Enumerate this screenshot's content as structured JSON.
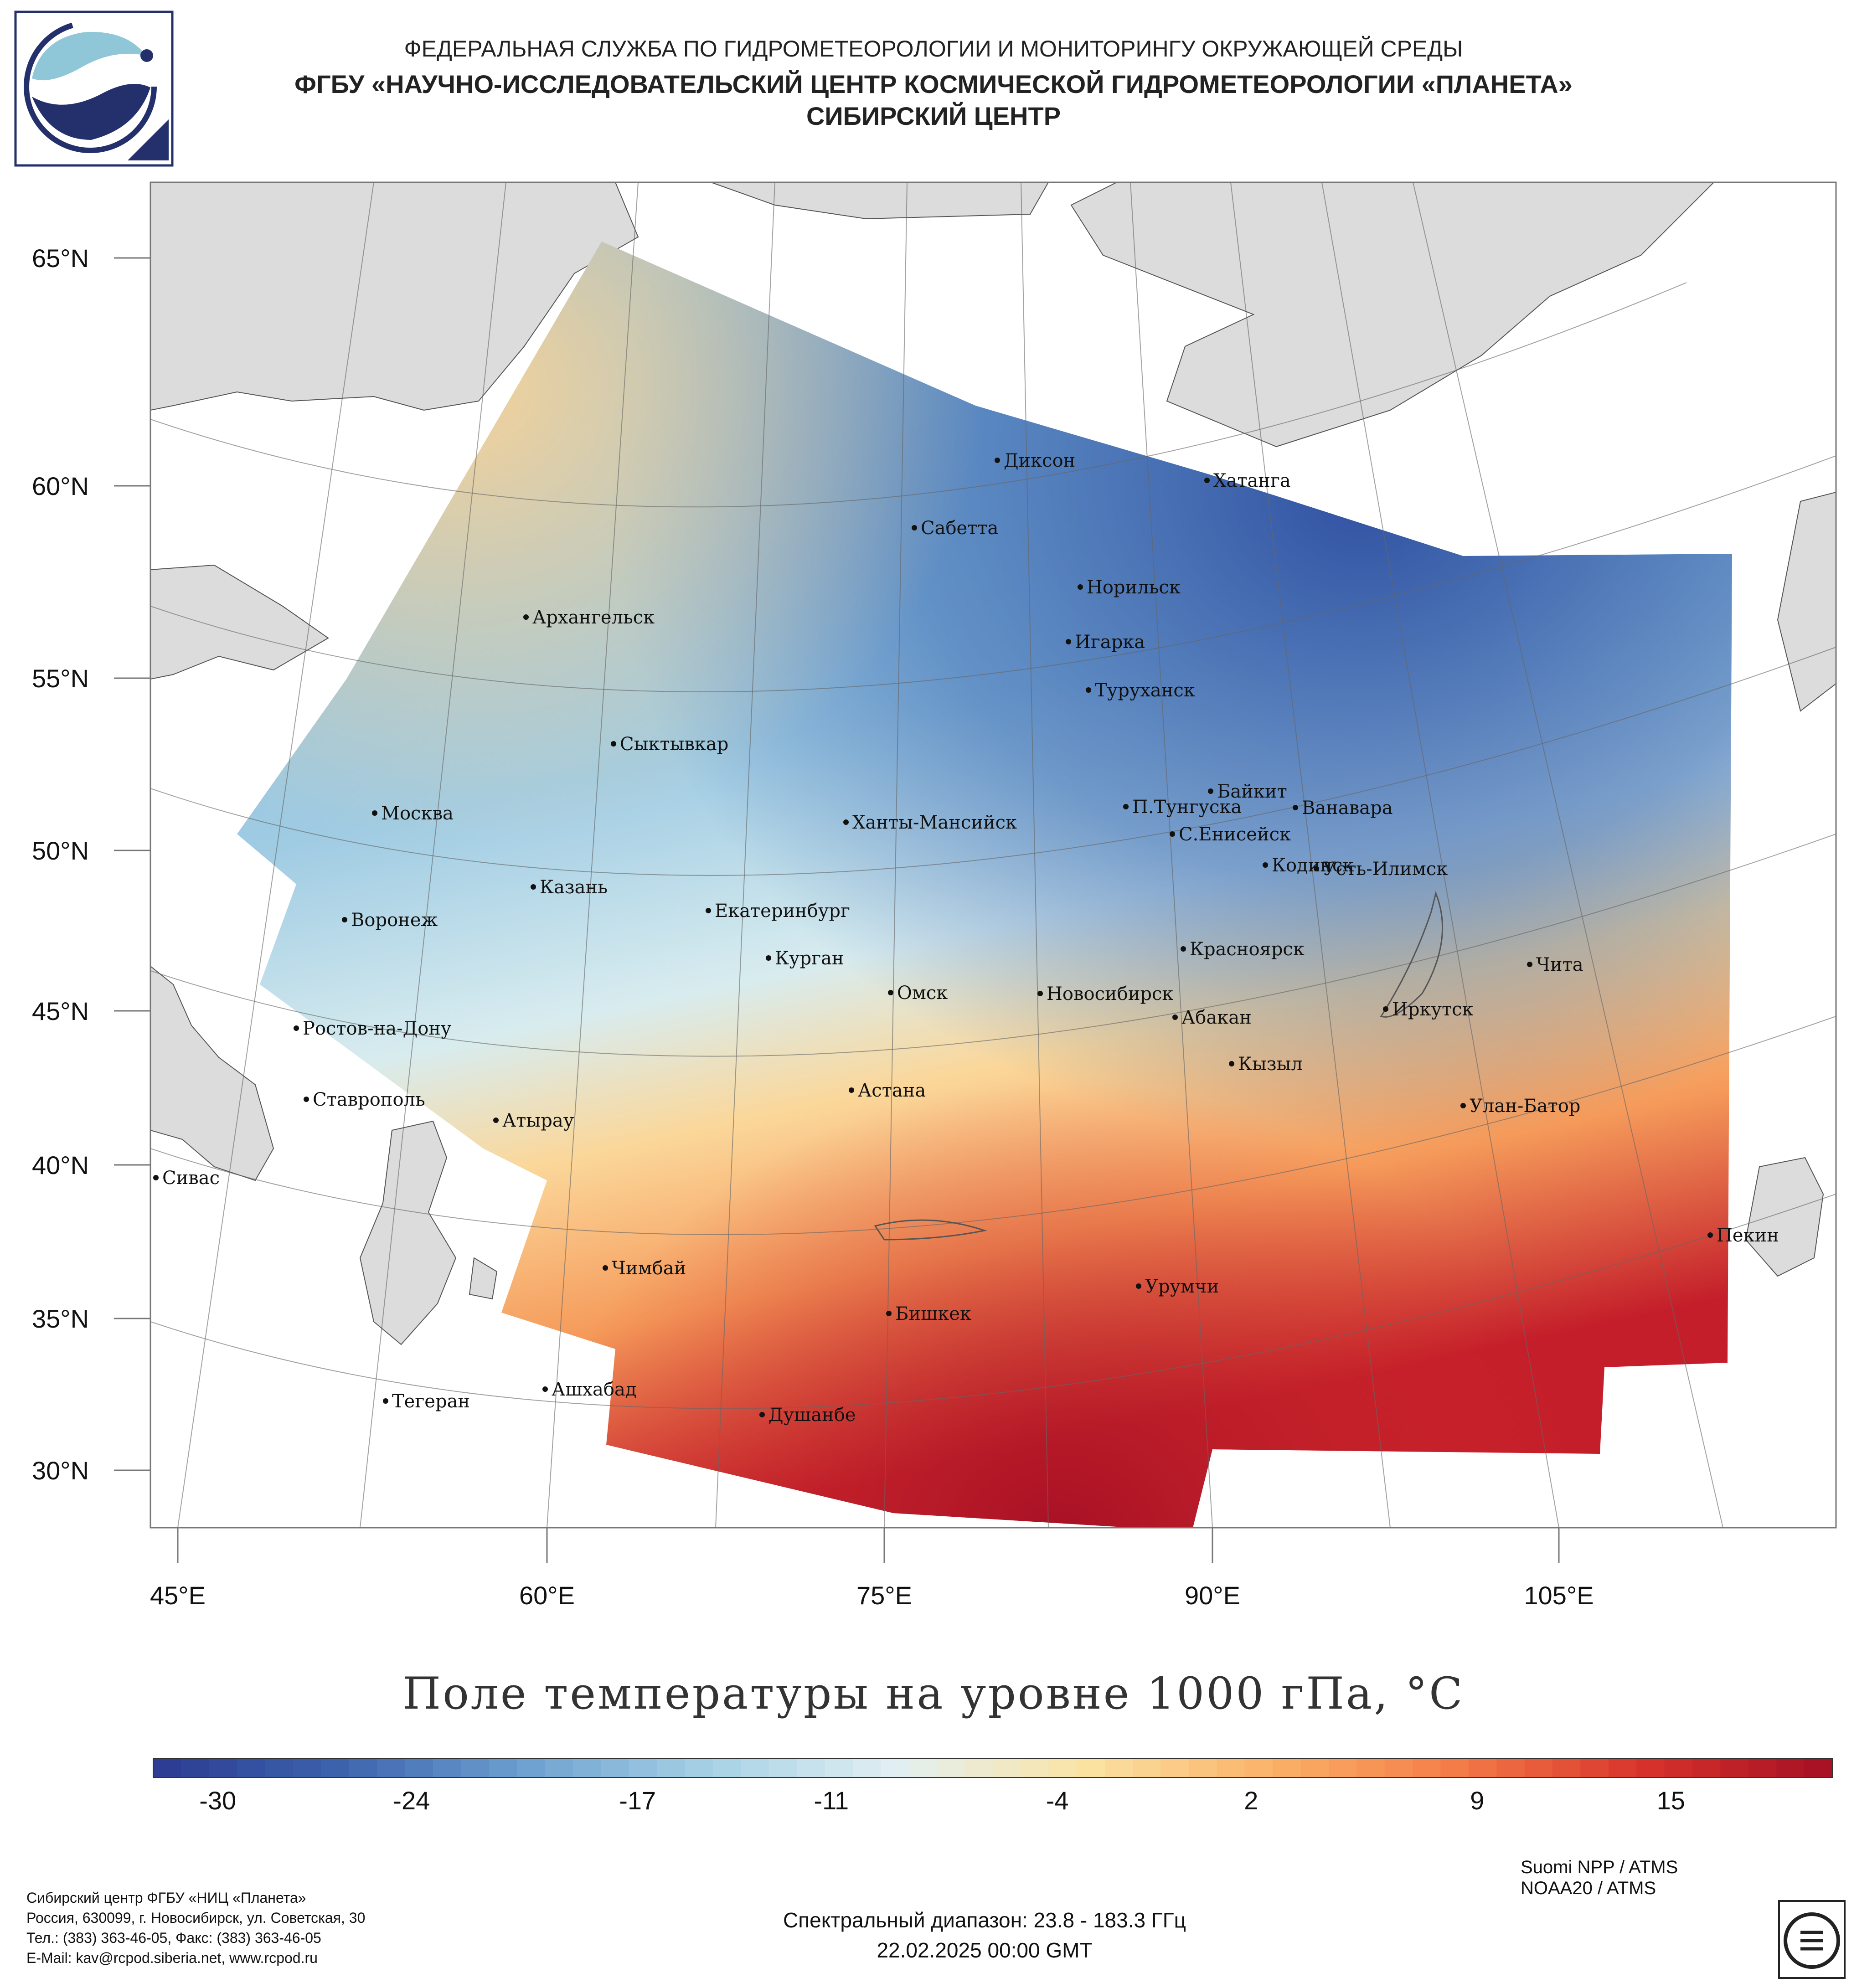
{
  "header": {
    "line1": "ФЕДЕРАЛЬНАЯ СЛУЖБА ПО ГИДРОМЕТЕОРОЛОГИИ И МОНИТОРИНГУ ОКРУЖАЮЩЕЙ СРЕДЫ",
    "line2": "ФГБУ «НАУЧНО-ИССЛЕДОВАТЕЛЬСКИЙ ЦЕНТР КОСМИЧЕСКОЙ ГИДРОМЕТЕОРОЛОГИИ «ПЛАНЕТА»",
    "line3": "СИБИРСКИЙ ЦЕНТР"
  },
  "map": {
    "lat_labels": [
      "65°N",
      "60°N",
      "55°N",
      "50°N",
      "45°N",
      "40°N",
      "35°N",
      "30°N"
    ],
    "lon_labels": [
      "45°E",
      "60°E",
      "75°E",
      "90°E",
      "105°E"
    ],
    "cities": [
      "Диксон",
      "Хатанга",
      "Сабетта",
      "Норильск",
      "Архангельск",
      "Игарка",
      "Туруханск",
      "Сыктывкар",
      "Байкит",
      "П.Тунгуска",
      "Ванавара",
      "Москва",
      "Ханты-Мансийск",
      "С.Енисейск",
      "Кодинск",
      "Усть-Илимск",
      "Казань",
      "Екатеринбург",
      "Воронеж",
      "Красноярск",
      "Курган",
      "Чита",
      "Омск",
      "Новосибирск",
      "Иркутск",
      "Ростов-на-Дону",
      "Абакан",
      "Кызыл",
      "Астана",
      "Ставрополь",
      "Улан-Батор",
      "Атырау",
      "Сивас",
      "Пекин",
      "Чимбай",
      "Урумчи",
      "Бишкек",
      "Ашхабад",
      "Тегеран",
      "Душанбе"
    ]
  },
  "chart_data": {
    "type": "heatmap",
    "title": "Поле температуры на уровне 1000 гПа, °C",
    "colorbar_ticks": [
      -30,
      -24,
      -17,
      -11,
      -4,
      2,
      9,
      15
    ],
    "colorbar_range": [
      -32,
      20
    ],
    "colors": [
      "#2b3a91",
      "#3d63ad",
      "#6ea1d0",
      "#a8d2e6",
      "#e3f0f2",
      "#fbe3a3",
      "#fbb167",
      "#f47b48",
      "#d7322b",
      "#a50f25"
    ]
  },
  "footer": {
    "org": [
      "Сибирский центр ФГБУ «НИЦ «Планета»",
      "Россия, 630099, г. Новосибирск, ул. Советская, 30",
      "Тел.: (383) 363-46-05, Факс: (383) 363-46-05",
      "E-Mail: kav@rcpod.siberia.net, www.rcpod.ru"
    ],
    "satellites": [
      "Suomi NPP / ATMS",
      "NOAA20 / ATMS"
    ],
    "spectral": "Спектральный диапазон: 23.8 - 183.3 ГГц",
    "datetime": "22.02.2025 00:00 GMT"
  }
}
